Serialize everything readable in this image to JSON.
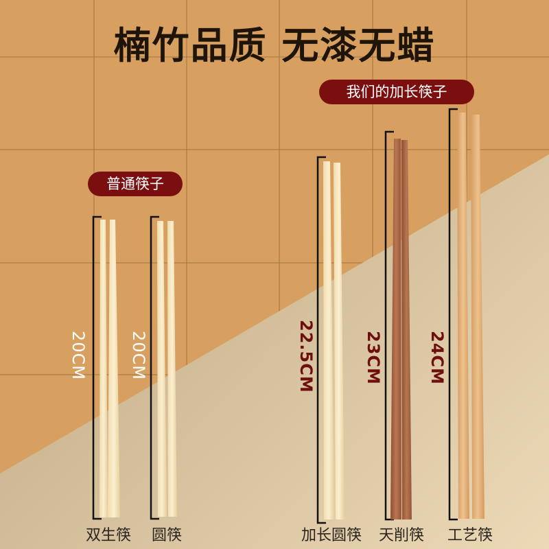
{
  "title": "楠竹品质 无漆无蜡",
  "badges": {
    "long": "我们的加长筷子",
    "normal": "普通筷子"
  },
  "colors": {
    "badge": "#7b0f10",
    "wall": "#d7a060",
    "floor": "#d9c39d",
    "dimension_accent": "#6e0f0f"
  },
  "products": [
    {
      "name": "双生筷",
      "length": "20CM"
    },
    {
      "name": "圆筷",
      "length": "20CM"
    },
    {
      "name": "加长圆筷",
      "length": "22.5CM"
    },
    {
      "name": "天削筷",
      "length": "23CM"
    },
    {
      "name": "工艺筷",
      "length": "24CM"
    }
  ]
}
